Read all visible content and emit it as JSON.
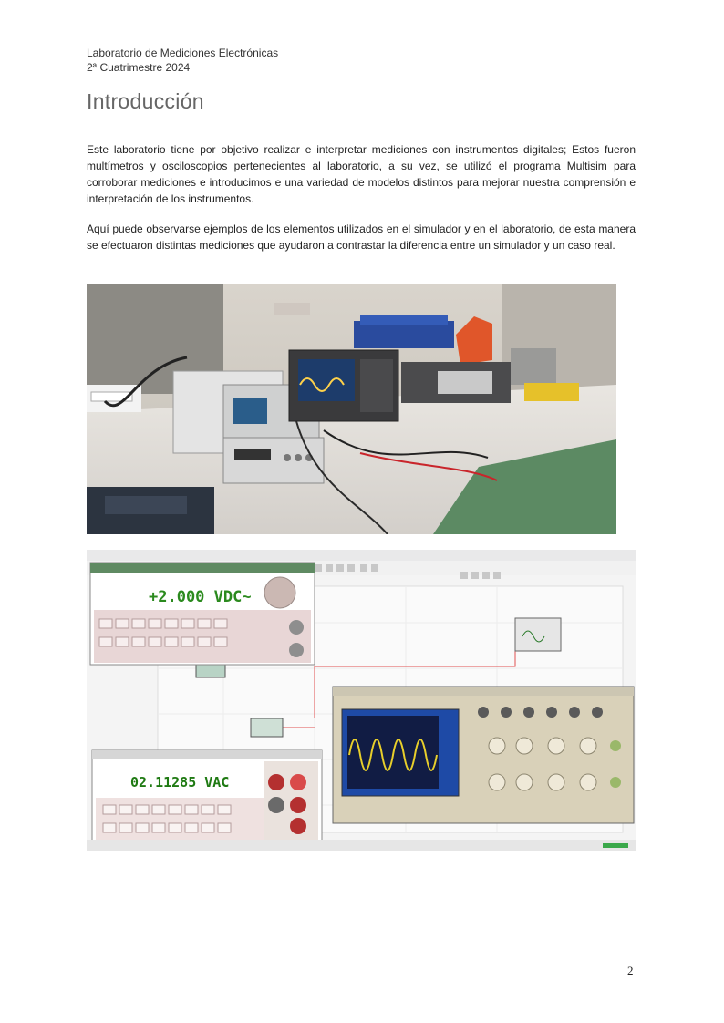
{
  "header": {
    "line1": "Laboratorio de Mediciones Electrónicas",
    "line2": "2ª Cuatrimestre 2024"
  },
  "section_title": "Introducción",
  "paragraphs": [
    "Este laboratorio tiene por objetivo realizar e interpretar mediciones con instrumentos digitales; Estos fueron multímetros y osciloscopios pertenecientes al laboratorio, a su vez, se utilizó el programa Multisim para corroborar mediciones e introducimos e una variedad de modelos distintos para mejorar nuestra comprensión e interpretación de los instrumentos.",
    "Aquí puede observarse ejemplos de los elementos utilizados en el simulador y en el laboratorio, de esta manera se efectuaron distintas mediciones que ayudaron a contrastar la diferencia entre un simulador y un caso real."
  ],
  "simulator": {
    "top_display": "+2.000 VDC~",
    "bottom_display": "02.11285 VAC"
  },
  "page_number": "2"
}
